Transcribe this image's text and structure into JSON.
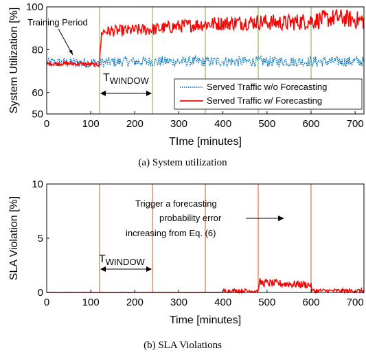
{
  "figure": {
    "caption_a": "(a) System utilization",
    "caption_b": "(b) SLA Violations"
  },
  "chart_data": [
    {
      "type": "line",
      "xlabel": "TIme [minutes]",
      "ylabel": "System Utilization [%]",
      "xlim": [
        0,
        720
      ],
      "ylim": [
        50,
        100
      ],
      "xticks": [
        0,
        100,
        200,
        300,
        400,
        500,
        600,
        700
      ],
      "yticks": [
        50,
        60,
        80,
        100
      ],
      "grid": false,
      "legend_position": "bottom-right",
      "vlines": [
        120,
        240,
        360,
        480,
        600
      ],
      "vline_color": "#77ac30",
      "series": [
        {
          "name": "Served Traffic w/o Forecasting",
          "color": "#0072bd",
          "style": "dotted",
          "x": [
            0,
            60,
            120,
            180,
            240,
            300,
            360,
            420,
            480,
            540,
            600,
            660,
            720
          ],
          "y": [
            74,
            74,
            74,
            74.5,
            74.5,
            74.5,
            74.5,
            74.5,
            74.5,
            74.5,
            74.5,
            74.5,
            74.5
          ]
        },
        {
          "name": "Served Traffic w/ Forecasting",
          "color": "#ff0000",
          "style": "solid",
          "x": [
            0,
            60,
            115,
            120,
            125,
            180,
            240,
            300,
            360,
            420,
            480,
            540,
            600,
            660,
            720
          ],
          "y": [
            73.5,
            73.5,
            73,
            74,
            88.5,
            89,
            89.5,
            91,
            92,
            92.5,
            93,
            92.5,
            93.5,
            95,
            93.5
          ]
        }
      ],
      "annotations": [
        {
          "text": "Training Period",
          "x": 70,
          "y": 74,
          "arrow": true
        },
        {
          "text_main": "T",
          "text_sub": "WINDOW",
          "span": [
            120,
            240
          ]
        }
      ]
    },
    {
      "type": "line",
      "xlabel": "Time [minutes]",
      "ylabel": "SLA Violation [%]",
      "xlim": [
        0,
        720
      ],
      "ylim": [
        0,
        10
      ],
      "xticks": [
        0,
        100,
        200,
        300,
        400,
        500,
        600,
        700
      ],
      "yticks": [
        0,
        5,
        10
      ],
      "grid": false,
      "vlines": [
        120,
        240,
        360,
        480,
        600
      ],
      "vline_color": "#d95319",
      "series": [
        {
          "color": "#ff0000",
          "style": "solid",
          "x": [
            0,
            400,
            402,
            480,
            482,
            600,
            602,
            720
          ],
          "y": [
            0,
            0,
            0.15,
            0.15,
            0.9,
            0.7,
            0.15,
            0.15
          ]
        }
      ],
      "annotations": [
        {
          "text_lines": [
            "Trigger a forecasting",
            "probability error",
            "increasing from Eq. (6)"
          ],
          "arrow": true
        },
        {
          "text_main": "T",
          "text_sub": "WINDOW",
          "span": [
            120,
            240
          ]
        }
      ]
    }
  ]
}
